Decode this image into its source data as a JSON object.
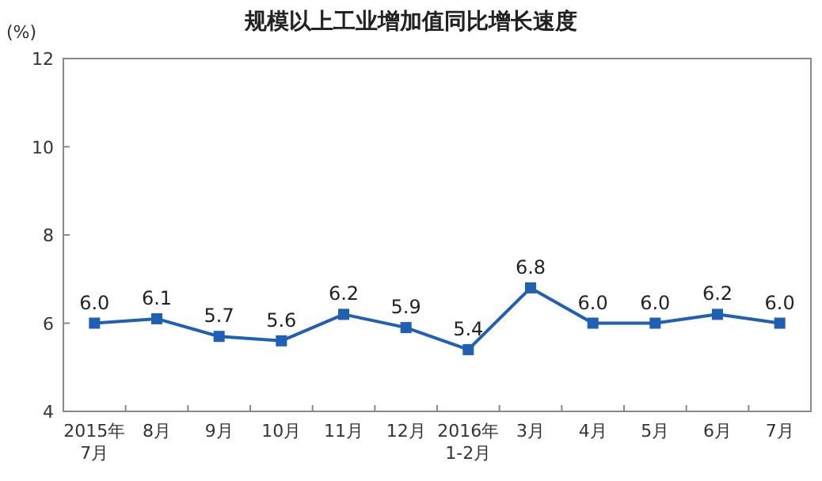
{
  "chart_data": {
    "type": "line",
    "title": "规模以上工业增加值同比增长速度",
    "ylabel": "(%)",
    "categories": [
      "2015年\n7月",
      "8月",
      "9月",
      "10月",
      "11月",
      "12月",
      "2016年\n1-2月",
      "3月",
      "4月",
      "5月",
      "6月",
      "7月"
    ],
    "series": [
      {
        "color": "#1f5fb4",
        "values": [
          6.0,
          6.1,
          5.7,
          5.6,
          6.2,
          5.9,
          5.4,
          6.8,
          6.0,
          6.0,
          6.2,
          6.0
        ],
        "value_labels": [
          "6.0",
          "6.1",
          "5.7",
          "5.6",
          "6.2",
          "5.9",
          "5.4",
          "6.8",
          "6.0",
          "6.0",
          "6.2",
          "6.0"
        ]
      }
    ],
    "ylim": [
      4,
      12
    ],
    "yticks": [
      4,
      6,
      8,
      10,
      12
    ],
    "marker": "square",
    "line_style": "solid"
  }
}
